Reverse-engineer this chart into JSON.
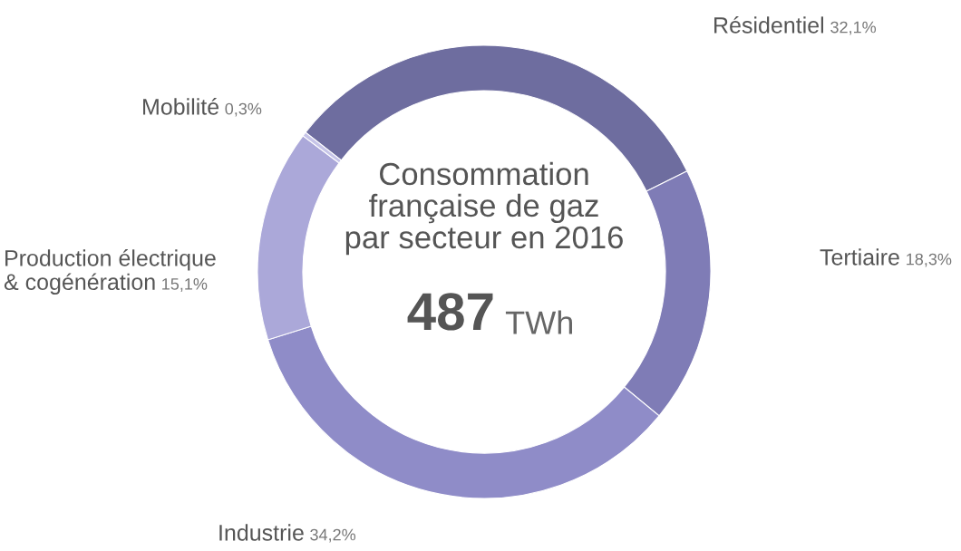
{
  "chart_data": {
    "type": "donut",
    "title": "Consommation\nfrançaise de gaz\npar secteur en 2016",
    "subtitle": "487 TWh",
    "categories": [
      "Résidentiel",
      "Tertiaire",
      "Industrie",
      "Production électrique\n& cogénération",
      "Mobilité"
    ],
    "values": [
      32.1,
      18.3,
      34.2,
      15.1,
      0.3
    ],
    "value_labels": [
      "32,1%",
      "18,3%",
      "34,2%",
      "15,1%",
      "0,3%"
    ],
    "colors": [
      "#6e6d9f",
      "#7f7cb6",
      "#8f8cc8",
      "#aba8d9",
      "#c6c4e8"
    ],
    "legend": false
  }
}
